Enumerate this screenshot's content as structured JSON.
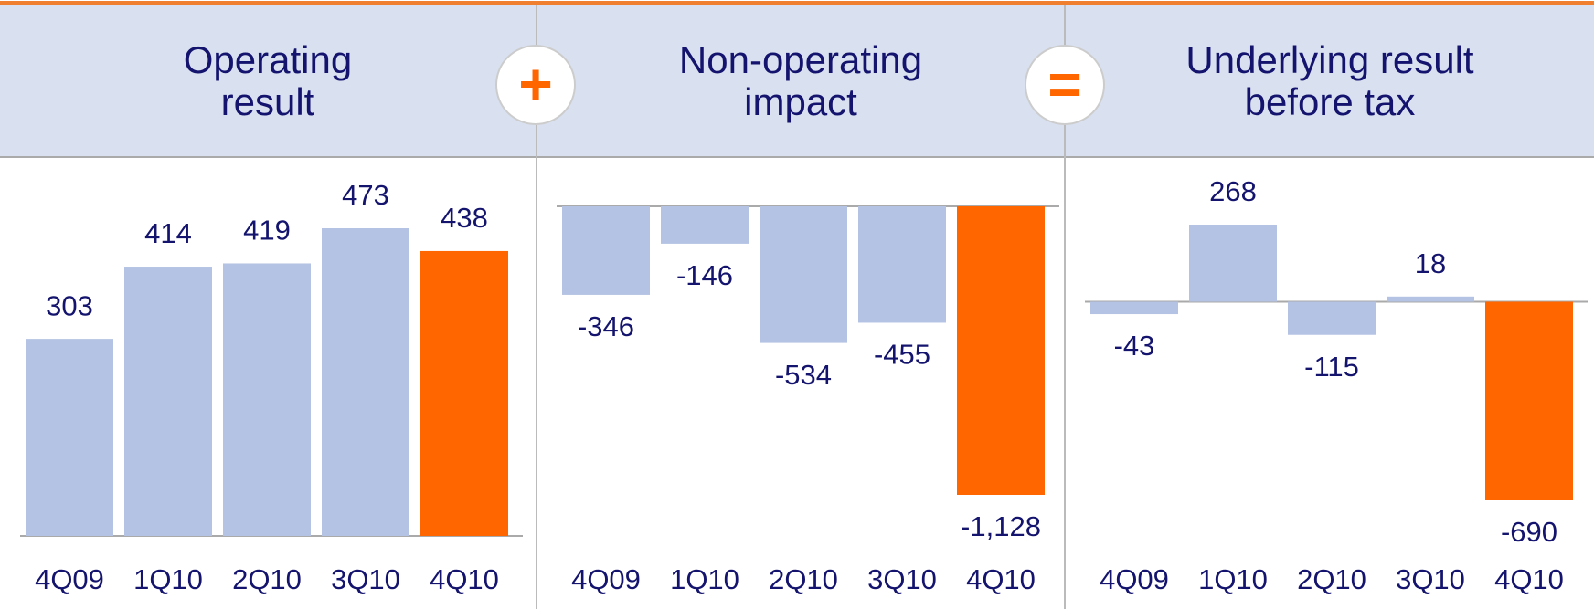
{
  "operators": [
    "+",
    "="
  ],
  "chart_data": [
    {
      "type": "bar",
      "title": "Operating result",
      "categories": [
        "4Q09",
        "1Q10",
        "2Q10",
        "3Q10",
        "4Q10"
      ],
      "values": [
        303,
        414,
        419,
        473,
        438
      ],
      "colors": [
        "#b4c3e3",
        "#b4c3e3",
        "#b4c3e3",
        "#b4c3e3",
        "#ff6600"
      ]
    },
    {
      "type": "bar",
      "title": "Non-operating impact",
      "categories": [
        "4Q09",
        "1Q10",
        "2Q10",
        "3Q10",
        "4Q10"
      ],
      "values": [
        -346,
        -146,
        -534,
        -455,
        -1128
      ],
      "value_labels": [
        "-346",
        "-146",
        "-534",
        "-455",
        "-1,128"
      ],
      "colors": [
        "#b4c3e3",
        "#b4c3e3",
        "#b4c3e3",
        "#b4c3e3",
        "#ff6600"
      ]
    },
    {
      "type": "bar",
      "title": "Underlying result before tax",
      "categories": [
        "4Q09",
        "1Q10",
        "2Q10",
        "3Q10",
        "4Q10"
      ],
      "values": [
        -43,
        268,
        -115,
        18,
        -690
      ],
      "colors": [
        "#b4c3e3",
        "#b4c3e3",
        "#b4c3e3",
        "#b4c3e3",
        "#ff6600"
      ]
    }
  ]
}
